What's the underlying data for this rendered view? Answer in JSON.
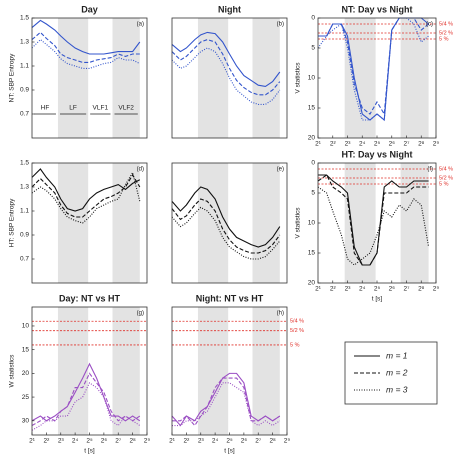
{
  "bands": [
    {
      "label": "HF",
      "range": [
        2,
        7
      ],
      "shaded": false
    },
    {
      "label": "LF",
      "range": [
        7,
        30
      ],
      "shaded": true
    },
    {
      "label": "VLF1",
      "range": [
        30,
        97
      ],
      "shaded": false
    },
    {
      "label": "VLF2",
      "range": [
        97,
        362
      ],
      "shaded": true
    }
  ],
  "legend": [
    {
      "label": "m = 1",
      "dash": "solid"
    },
    {
      "label": "m = 2",
      "dash": "dashed"
    },
    {
      "label": "m = 3",
      "dash": "dotted"
    }
  ],
  "chart_data": [
    {
      "type": "line",
      "title": "Day",
      "panel_label": "(a)",
      "ylabel": "NT: SBP Entropy",
      "log_x": true,
      "xlim": [
        2,
        512
      ],
      "x": [
        2,
        3,
        4,
        6,
        8,
        11,
        16,
        23,
        32,
        45,
        64,
        91,
        128,
        181,
        256,
        362
      ],
      "ylim": [
        0.5,
        1.5
      ],
      "yticks": [
        0.7,
        0.9,
        1.1,
        1.3,
        1.5
      ],
      "inverted": false,
      "band_label_y": 0.7,
      "series": [
        {
          "color": "#3355cc",
          "dash": "solid",
          "values": [
            1.42,
            1.48,
            1.45,
            1.4,
            1.35,
            1.3,
            1.25,
            1.22,
            1.2,
            1.2,
            1.2,
            1.21,
            1.22,
            1.22,
            1.22,
            1.3
          ]
        },
        {
          "color": "#3355cc",
          "dash": "dashed",
          "values": [
            1.32,
            1.38,
            1.33,
            1.27,
            1.2,
            1.17,
            1.15,
            1.13,
            1.13,
            1.15,
            1.16,
            1.17,
            1.2,
            1.18,
            1.2,
            1.2
          ]
        },
        {
          "color": "#3355cc",
          "dash": "dotted",
          "values": [
            1.25,
            1.32,
            1.28,
            1.22,
            1.16,
            1.12,
            1.1,
            1.08,
            1.08,
            1.1,
            1.12,
            1.13,
            1.17,
            1.15,
            1.15,
            1.12
          ]
        }
      ]
    },
    {
      "type": "line",
      "title": "Night",
      "panel_label": "(b)",
      "log_x": true,
      "xlim": [
        2,
        512
      ],
      "x": [
        2,
        3,
        4,
        6,
        8,
        11,
        16,
        23,
        32,
        45,
        64,
        91,
        128,
        181,
        256,
        362
      ],
      "ylim": [
        0.5,
        1.5
      ],
      "inverted": false,
      "series": [
        {
          "color": "#3355cc",
          "dash": "solid",
          "values": [
            1.28,
            1.22,
            1.25,
            1.32,
            1.36,
            1.38,
            1.37,
            1.3,
            1.2,
            1.1,
            1.02,
            0.98,
            0.94,
            0.93,
            0.97,
            1.05
          ]
        },
        {
          "color": "#3355cc",
          "dash": "dashed",
          "values": [
            1.22,
            1.15,
            1.18,
            1.25,
            1.3,
            1.32,
            1.3,
            1.2,
            1.08,
            0.98,
            0.92,
            0.88,
            0.86,
            0.86,
            0.9,
            0.97
          ]
        },
        {
          "color": "#3355cc",
          "dash": "dotted",
          "values": [
            1.15,
            1.08,
            1.1,
            1.17,
            1.22,
            1.25,
            1.22,
            1.12,
            1.0,
            0.9,
            0.85,
            0.8,
            0.78,
            0.78,
            0.82,
            0.9
          ]
        }
      ]
    },
    {
      "type": "line",
      "title": "NT: Day vs Night",
      "panel_label": "(c)",
      "ylabel": "V statistics",
      "log_x": true,
      "xlim": [
        2,
        512
      ],
      "xticks": [
        {
          "value": 2,
          "label": "2¹"
        },
        {
          "value": 4,
          "label": "2²"
        },
        {
          "value": 8,
          "label": "2³"
        },
        {
          "value": 16,
          "label": "2⁴"
        },
        {
          "value": 32,
          "label": "2⁵"
        },
        {
          "value": 64,
          "label": "2⁶"
        },
        {
          "value": 128,
          "label": "2⁷"
        },
        {
          "value": 256,
          "label": "2⁸"
        },
        {
          "value": 512,
          "label": "2⁹"
        }
      ],
      "x": [
        2,
        3,
        4,
        6,
        8,
        11,
        16,
        23,
        32,
        45,
        64,
        91,
        128,
        181,
        256,
        362
      ],
      "ylim": [
        0,
        20
      ],
      "yticks": [
        0,
        5,
        10,
        15,
        20
      ],
      "inverted": true,
      "ref_lines": [
        {
          "value": 1,
          "label": "5/4 %"
        },
        {
          "value": 2.5,
          "label": "5/2 %"
        },
        {
          "value": 3.5,
          "label": "5 %"
        }
      ],
      "series": [
        {
          "color": "#3355cc",
          "dash": "solid",
          "values": [
            3,
            3,
            1,
            1,
            3,
            10,
            16,
            17,
            16,
            17,
            2,
            0,
            0,
            0,
            0,
            1
          ]
        },
        {
          "color": "#3355cc",
          "dash": "dashed",
          "values": [
            3,
            3,
            1,
            1,
            4,
            11,
            15,
            16,
            14,
            16,
            2,
            0,
            0,
            0,
            2,
            1
          ]
        },
        {
          "color": "#3355cc",
          "dash": "dotted",
          "values": [
            5,
            3,
            2,
            1,
            5,
            12,
            17,
            17,
            16,
            17,
            2,
            0,
            0,
            1,
            4,
            3
          ]
        }
      ]
    },
    {
      "type": "line",
      "title": "",
      "panel_label": "(d)",
      "ylabel": "HT: SBP Entropy",
      "log_x": true,
      "xlim": [
        2,
        512
      ],
      "x": [
        2,
        3,
        4,
        6,
        8,
        11,
        16,
        23,
        32,
        45,
        64,
        91,
        128,
        181,
        256,
        362
      ],
      "ylim": [
        0.5,
        1.5
      ],
      "yticks": [
        0.7,
        0.9,
        1.1,
        1.3,
        1.5
      ],
      "inverted": false,
      "series": [
        {
          "color": "#111111",
          "dash": "solid",
          "values": [
            1.38,
            1.45,
            1.38,
            1.3,
            1.2,
            1.12,
            1.1,
            1.12,
            1.2,
            1.25,
            1.28,
            1.3,
            1.32,
            1.28,
            1.33,
            1.36
          ]
        },
        {
          "color": "#111111",
          "dash": "dashed",
          "values": [
            1.3,
            1.37,
            1.32,
            1.25,
            1.15,
            1.08,
            1.05,
            1.05,
            1.1,
            1.15,
            1.2,
            1.22,
            1.25,
            1.3,
            1.4,
            1.3
          ]
        },
        {
          "color": "#111111",
          "dash": "dotted",
          "values": [
            1.25,
            1.3,
            1.27,
            1.2,
            1.12,
            1.05,
            1.02,
            1.0,
            1.05,
            1.12,
            1.15,
            1.18,
            1.2,
            1.32,
            1.42,
            1.18
          ]
        }
      ]
    },
    {
      "type": "line",
      "title": "",
      "panel_label": "(e)",
      "log_x": true,
      "xlim": [
        2,
        512
      ],
      "x": [
        2,
        3,
        4,
        6,
        8,
        11,
        16,
        23,
        32,
        45,
        64,
        91,
        128,
        181,
        256,
        362
      ],
      "ylim": [
        0.5,
        1.5
      ],
      "inverted": false,
      "series": [
        {
          "color": "#111111",
          "dash": "solid",
          "values": [
            1.18,
            1.1,
            1.15,
            1.25,
            1.3,
            1.28,
            1.2,
            1.05,
            0.95,
            0.88,
            0.85,
            0.82,
            0.8,
            0.82,
            0.88,
            0.97
          ]
        },
        {
          "color": "#111111",
          "dash": "dashed",
          "values": [
            1.12,
            1.03,
            1.06,
            1.15,
            1.2,
            1.18,
            1.1,
            0.95,
            0.86,
            0.8,
            0.77,
            0.75,
            0.75,
            0.77,
            0.82,
            0.9
          ]
        },
        {
          "color": "#111111",
          "dash": "dotted",
          "values": [
            1.05,
            0.97,
            1.0,
            1.08,
            1.13,
            1.1,
            1.02,
            0.88,
            0.8,
            0.76,
            0.72,
            0.7,
            0.7,
            0.72,
            0.78,
            0.85
          ]
        }
      ]
    },
    {
      "type": "line",
      "title": "HT: Day vs Night",
      "panel_label": "(f)",
      "ylabel": "V statistics",
      "xlabel": "t [s]",
      "log_x": true,
      "xlim": [
        2,
        512
      ],
      "xticks": [
        {
          "value": 2,
          "label": "2¹"
        },
        {
          "value": 4,
          "label": "2²"
        },
        {
          "value": 8,
          "label": "2³"
        },
        {
          "value": 16,
          "label": "2⁴"
        },
        {
          "value": 32,
          "label": "2⁵"
        },
        {
          "value": 64,
          "label": "2⁶"
        },
        {
          "value": 128,
          "label": "2⁷"
        },
        {
          "value": 256,
          "label": "2⁸"
        },
        {
          "value": 512,
          "label": "2⁹"
        }
      ],
      "x": [
        2,
        3,
        4,
        6,
        8,
        11,
        16,
        23,
        32,
        45,
        64,
        91,
        128,
        181,
        256,
        362
      ],
      "ylim": [
        0,
        20
      ],
      "yticks": [
        0,
        5,
        10,
        15,
        20
      ],
      "inverted": true,
      "ref_lines": [
        {
          "value": 1,
          "label": "5/4 %"
        },
        {
          "value": 2.5,
          "label": "5/2 %"
        },
        {
          "value": 3.5,
          "label": "5 %"
        }
      ],
      "series": [
        {
          "color": "#111111",
          "dash": "solid",
          "values": [
            2,
            2,
            3,
            4,
            5,
            14,
            17,
            17,
            15,
            4,
            3,
            4,
            4,
            3,
            3,
            3
          ]
        },
        {
          "color": "#111111",
          "dash": "dashed",
          "values": [
            3,
            2,
            4,
            5,
            6,
            15,
            17,
            17,
            15,
            5,
            5,
            5,
            5,
            4,
            4,
            4
          ]
        },
        {
          "color": "#111111",
          "dash": "dotted",
          "values": [
            4,
            5,
            8,
            12,
            16,
            17,
            16,
            15,
            12,
            8,
            9,
            7,
            8,
            6,
            7,
            14
          ]
        }
      ]
    },
    {
      "type": "line",
      "title": "Day: NT vs HT",
      "panel_label": "(g)",
      "ylabel": "W statistics",
      "xlabel": "t [s]",
      "log_x": true,
      "xlim": [
        2,
        512
      ],
      "xticks": [
        {
          "value": 2,
          "label": "2¹"
        },
        {
          "value": 4,
          "label": "2²"
        },
        {
          "value": 8,
          "label": "2³"
        },
        {
          "value": 16,
          "label": "2⁴"
        },
        {
          "value": 32,
          "label": "2⁵"
        },
        {
          "value": 64,
          "label": "2⁶"
        },
        {
          "value": 128,
          "label": "2⁷"
        },
        {
          "value": 256,
          "label": "2⁸"
        },
        {
          "value": 512,
          "label": "2⁹"
        }
      ],
      "x": [
        2,
        3,
        4,
        6,
        8,
        11,
        16,
        23,
        32,
        45,
        64,
        91,
        128,
        181,
        256,
        362
      ],
      "ylim": [
        6,
        33
      ],
      "yticks": [
        10,
        15,
        20,
        25,
        30
      ],
      "inverted": true,
      "ref_lines": [
        {
          "value": 9
        },
        {
          "value": 11
        },
        {
          "value": 14
        }
      ],
      "series": [
        {
          "color": "#9b4fc4",
          "dash": "solid",
          "values": [
            30,
            29,
            30,
            29,
            28,
            27,
            24,
            21,
            18,
            21,
            25,
            29,
            29,
            30,
            29,
            30
          ]
        },
        {
          "color": "#9b4fc4",
          "dash": "dashed",
          "values": [
            31,
            30,
            29,
            30,
            28,
            27,
            23,
            23,
            20,
            22,
            24,
            28,
            30,
            29,
            30,
            29
          ]
        },
        {
          "color": "#9b4fc4",
          "dash": "dotted",
          "values": [
            32,
            31,
            30,
            30,
            29,
            29,
            26,
            25,
            22,
            23,
            25,
            30,
            31,
            29,
            30,
            31
          ]
        }
      ]
    },
    {
      "type": "line",
      "title": "Night: NT vs HT",
      "panel_label": "(h)",
      "xlabel": "t [s]",
      "log_x": true,
      "xlim": [
        2,
        512
      ],
      "xticks": [
        {
          "value": 2,
          "label": "2¹"
        },
        {
          "value": 4,
          "label": "2²"
        },
        {
          "value": 8,
          "label": "2³"
        },
        {
          "value": 16,
          "label": "2⁴"
        },
        {
          "value": 32,
          "label": "2⁵"
        },
        {
          "value": 64,
          "label": "2⁶"
        },
        {
          "value": 128,
          "label": "2⁷"
        },
        {
          "value": 256,
          "label": "2⁸"
        },
        {
          "value": 512,
          "label": "2⁹"
        }
      ],
      "x": [
        2,
        3,
        4,
        6,
        8,
        11,
        16,
        23,
        32,
        45,
        64,
        91,
        128,
        181,
        256,
        362
      ],
      "ylim": [
        6,
        33
      ],
      "inverted": true,
      "ref_lines": [
        {
          "value": 9,
          "label": "5/4 %"
        },
        {
          "value": 11,
          "label": "5/2 %"
        },
        {
          "value": 14,
          "label": "5 %"
        }
      ],
      "series": [
        {
          "color": "#9b4fc4",
          "dash": "solid",
          "values": [
            29,
            31,
            29,
            30,
            28,
            27,
            24,
            21,
            20,
            20,
            22,
            29,
            30,
            29,
            30,
            29
          ]
        },
        {
          "color": "#9b4fc4",
          "dash": "dashed",
          "values": [
            30,
            30,
            29,
            31,
            29,
            27,
            23,
            21,
            21,
            21,
            23,
            30,
            30,
            29,
            30,
            29
          ]
        },
        {
          "color": "#9b4fc4",
          "dash": "dotted",
          "values": [
            31,
            31,
            30,
            30,
            29,
            28,
            25,
            22,
            22,
            23,
            24,
            30,
            31,
            30,
            31,
            30
          ]
        }
      ]
    }
  ]
}
